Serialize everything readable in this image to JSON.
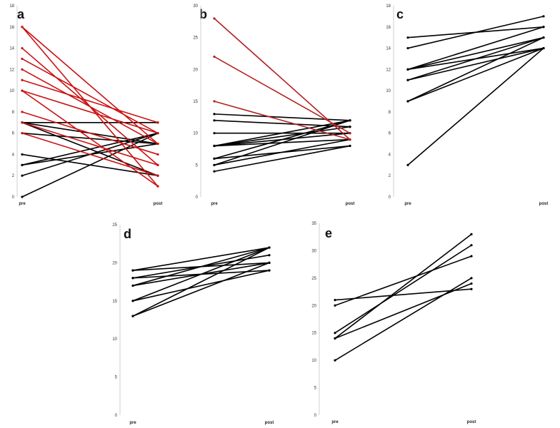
{
  "chart_data": [
    {
      "panel": "a",
      "type": "line",
      "categories": [
        "pre",
        "post"
      ],
      "ylim": [
        0,
        18
      ],
      "yticks": [
        0,
        2,
        4,
        6,
        8,
        10,
        12,
        14,
        16,
        18
      ],
      "colors": {
        "improved": "#000000",
        "declined": "#cc1111"
      },
      "series": [
        {
          "values": [
            16,
            5
          ],
          "group": "declined"
        },
        {
          "values": [
            16,
            1
          ],
          "group": "declined"
        },
        {
          "values": [
            14,
            3
          ],
          "group": "declined"
        },
        {
          "values": [
            13,
            6
          ],
          "group": "declined"
        },
        {
          "values": [
            12,
            5
          ],
          "group": "declined"
        },
        {
          "values": [
            11,
            7
          ],
          "group": "declined"
        },
        {
          "values": [
            10,
            6
          ],
          "group": "declined"
        },
        {
          "values": [
            10,
            1
          ],
          "group": "declined"
        },
        {
          "values": [
            8,
            4
          ],
          "group": "declined"
        },
        {
          "values": [
            7,
            3
          ],
          "group": "declined"
        },
        {
          "values": [
            6,
            2
          ],
          "group": "declined"
        },
        {
          "values": [
            7,
            7
          ],
          "group": "improved"
        },
        {
          "values": [
            7,
            5
          ],
          "group": "improved"
        },
        {
          "values": [
            7,
            2
          ],
          "group": "improved"
        },
        {
          "values": [
            6,
            5
          ],
          "group": "improved"
        },
        {
          "values": [
            4,
            2
          ],
          "group": "improved"
        },
        {
          "values": [
            3,
            6
          ],
          "group": "improved"
        },
        {
          "values": [
            3,
            5
          ],
          "group": "improved"
        },
        {
          "values": [
            2,
            6
          ],
          "group": "improved"
        },
        {
          "values": [
            0,
            6
          ],
          "group": "improved"
        }
      ]
    },
    {
      "panel": "b",
      "type": "line",
      "categories": [
        "pre",
        "post"
      ],
      "ylim": [
        0,
        30
      ],
      "yticks": [
        0,
        5,
        10,
        15,
        20,
        25,
        30
      ],
      "colors": {
        "improved": "#000000",
        "declined": "#b32222"
      },
      "series": [
        {
          "values": [
            28,
            9
          ],
          "group": "declined"
        },
        {
          "values": [
            22,
            10
          ],
          "group": "declined"
        },
        {
          "values": [
            15,
            9
          ],
          "group": "declined"
        },
        {
          "values": [
            13,
            12
          ],
          "group": "improved"
        },
        {
          "values": [
            12,
            11
          ],
          "group": "improved"
        },
        {
          "values": [
            10,
            10
          ],
          "group": "improved"
        },
        {
          "values": [
            8,
            12
          ],
          "group": "improved"
        },
        {
          "values": [
            8,
            11
          ],
          "group": "improved"
        },
        {
          "values": [
            8,
            10
          ],
          "group": "improved"
        },
        {
          "values": [
            8,
            9
          ],
          "group": "improved"
        },
        {
          "values": [
            6,
            12
          ],
          "group": "improved"
        },
        {
          "values": [
            6,
            8
          ],
          "group": "improved"
        },
        {
          "values": [
            5,
            12
          ],
          "group": "improved"
        },
        {
          "values": [
            5,
            9
          ],
          "group": "improved"
        },
        {
          "values": [
            4,
            8
          ],
          "group": "improved"
        }
      ]
    },
    {
      "panel": "c",
      "type": "line",
      "categories": [
        "pre",
        "post"
      ],
      "ylim": [
        0,
        18
      ],
      "yticks": [
        0,
        2,
        4,
        6,
        8,
        10,
        12,
        14,
        16,
        18
      ],
      "colors": {
        "improved": "#000000"
      },
      "series": [
        {
          "values": [
            15,
            16
          ],
          "group": "improved"
        },
        {
          "values": [
            14,
            17
          ],
          "group": "improved"
        },
        {
          "values": [
            12,
            16
          ],
          "group": "improved"
        },
        {
          "values": [
            12,
            15
          ],
          "group": "improved"
        },
        {
          "values": [
            12,
            14
          ],
          "group": "improved"
        },
        {
          "values": [
            11,
            15
          ],
          "group": "improved"
        },
        {
          "values": [
            11,
            14
          ],
          "group": "improved"
        },
        {
          "values": [
            9,
            15
          ],
          "group": "improved"
        },
        {
          "values": [
            9,
            14
          ],
          "group": "improved"
        },
        {
          "values": [
            3,
            14
          ],
          "group": "improved"
        }
      ]
    },
    {
      "panel": "d",
      "type": "line",
      "categories": [
        "pre",
        "post"
      ],
      "ylim": [
        0,
        25
      ],
      "yticks": [
        0,
        5,
        10,
        15,
        20,
        25
      ],
      "colors": {
        "improved": "#000000"
      },
      "series": [
        {
          "values": [
            19,
            22
          ],
          "group": "improved"
        },
        {
          "values": [
            19,
            20
          ],
          "group": "improved"
        },
        {
          "values": [
            18,
            21
          ],
          "group": "improved"
        },
        {
          "values": [
            18,
            19
          ],
          "group": "improved"
        },
        {
          "values": [
            17,
            22
          ],
          "group": "improved"
        },
        {
          "values": [
            17,
            20
          ],
          "group": "improved"
        },
        {
          "values": [
            15,
            22
          ],
          "group": "improved"
        },
        {
          "values": [
            15,
            19
          ],
          "group": "improved"
        },
        {
          "values": [
            13,
            22
          ],
          "group": "improved"
        },
        {
          "values": [
            13,
            20
          ],
          "group": "improved"
        }
      ]
    },
    {
      "panel": "e",
      "type": "line",
      "categories": [
        "pre",
        "post"
      ],
      "ylim": [
        0,
        35
      ],
      "yticks": [
        0,
        5,
        10,
        15,
        20,
        25,
        30,
        35
      ],
      "colors": {
        "improved": "#000000"
      },
      "series": [
        {
          "values": [
            21,
            23
          ],
          "group": "improved"
        },
        {
          "values": [
            20,
            29
          ],
          "group": "improved"
        },
        {
          "values": [
            15,
            31
          ],
          "group": "improved"
        },
        {
          "values": [
            14,
            33
          ],
          "group": "improved"
        },
        {
          "values": [
            14,
            24
          ],
          "group": "improved"
        },
        {
          "values": [
            10,
            25
          ],
          "group": "improved"
        }
      ]
    }
  ]
}
